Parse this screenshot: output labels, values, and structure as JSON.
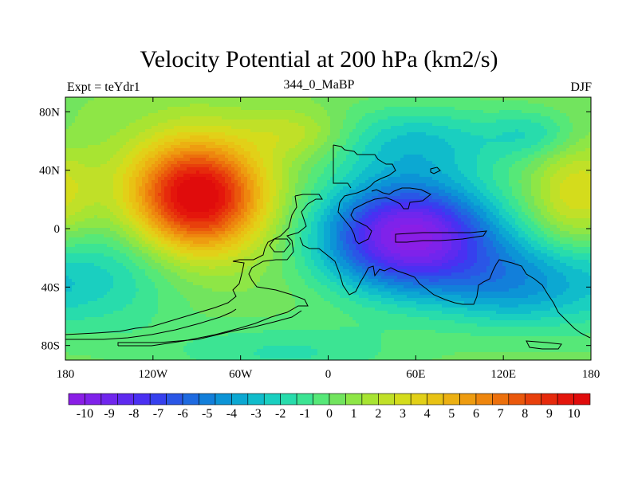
{
  "header": {
    "title": "Velocity Potential at 200 hPa (km2/s)",
    "left_label": "Expt = teYdr1",
    "center_label": "344_0_MaBP",
    "right_label": "DJF"
  },
  "chart_data": {
    "type": "heatmap",
    "title": "Velocity Potential at 200 hPa (km2/s)",
    "units": "km2/s",
    "level": "200 hPa",
    "experiment": "teYdr1",
    "season": "DJF",
    "xlim": [
      -180,
      180
    ],
    "ylim": [
      -90,
      90
    ],
    "x_ticks": [
      {
        "value": -180,
        "label": "180"
      },
      {
        "value": -120,
        "label": "120W"
      },
      {
        "value": -60,
        "label": "60W"
      },
      {
        "value": 0,
        "label": "0"
      },
      {
        "value": 60,
        "label": "60E"
      },
      {
        "value": 120,
        "label": "120E"
      },
      {
        "value": 180,
        "label": "180"
      }
    ],
    "y_ticks": [
      {
        "value": 80,
        "label": "80N"
      },
      {
        "value": 40,
        "label": "40N"
      },
      {
        "value": 0,
        "label": "0"
      },
      {
        "value": -40,
        "label": "40S"
      },
      {
        "value": -80,
        "label": "80S"
      }
    ],
    "features": [
      {
        "name": "positive-max",
        "lon": -90,
        "lat": 22,
        "value": 10.5,
        "sx": 32,
        "sy": 27
      },
      {
        "name": "negative-min",
        "lon": 55,
        "lat": -5,
        "value": -10.8,
        "sx": 42,
        "sy": 27
      },
      {
        "name": "southern-extension",
        "lon": 130,
        "lat": -38,
        "value": -4,
        "sx": 38,
        "sy": 22
      },
      {
        "name": "south-pacific-low",
        "lon": -150,
        "lat": -30,
        "value": -2.5,
        "sx": 40,
        "sy": 30
      },
      {
        "name": "antarctic-low",
        "lon": -30,
        "lat": -85,
        "value": -2,
        "sx": 60,
        "sy": 15
      },
      {
        "name": "north-atlantic-high",
        "lon": -20,
        "lat": 65,
        "value": 2,
        "sx": 25,
        "sy": 12
      },
      {
        "name": "north-pacific-high",
        "lon": 170,
        "lat": 20,
        "value": 3,
        "sx": 22,
        "sy": 25
      },
      {
        "name": "asia-low",
        "lon": 60,
        "lat": 60,
        "value": -3,
        "sx": 45,
        "sy": 18
      },
      {
        "name": "pacific-low",
        "lon": 140,
        "lat": 65,
        "value": -2,
        "sx": 22,
        "sy": 12
      }
    ],
    "colorbar": {
      "tick_labels": [
        "-10",
        "-9",
        "-8",
        "-7",
        "-6",
        "-5",
        "-4",
        "-3",
        "-2",
        "-1",
        "0",
        "1",
        "2",
        "3",
        "4",
        "5",
        "6",
        "7",
        "8",
        "9",
        "10"
      ],
      "colors": [
        "#8a1ee6",
        "#7f22ea",
        "#7026ed",
        "#5e2aef",
        "#4a30f2",
        "#3640ee",
        "#2a56e6",
        "#1e6ae0",
        "#127fda",
        "#0c94d6",
        "#0ca8d2",
        "#10bccb",
        "#1acfc0",
        "#28dcac",
        "#3ce493",
        "#56e878",
        "#72e45e",
        "#8ee646",
        "#a8e432",
        "#c0e028",
        "#d4dc1c",
        "#e2d018",
        "#e8c214",
        "#ecb012",
        "#ee9c10",
        "#ee860e",
        "#ec700c",
        "#ea580c",
        "#e8400c",
        "#e62a0c",
        "#e4160c",
        "#e00c0c"
      ]
    },
    "coastline_color": "#000000"
  }
}
